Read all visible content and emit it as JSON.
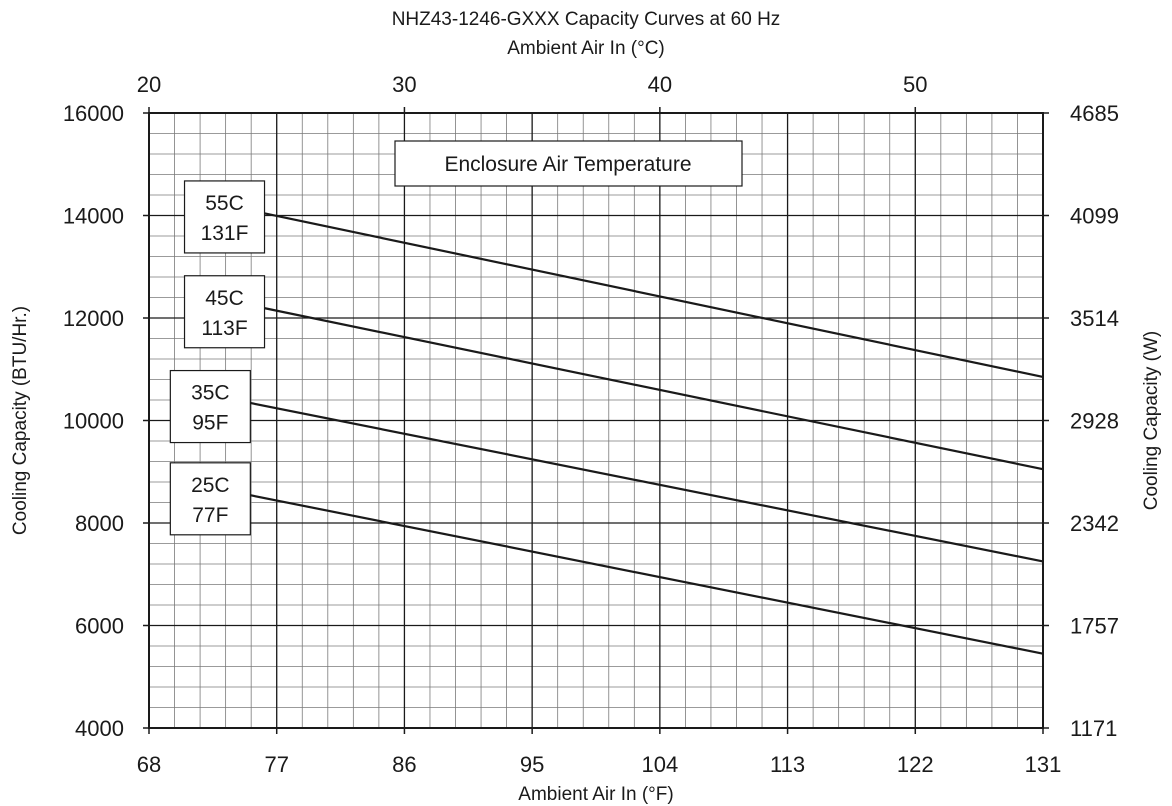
{
  "chart_data": {
    "type": "line",
    "title": "NHZ43-1246-GXXX Capacity Curves at 60 Hz",
    "top_axis_label": "Ambient Air In (°C)",
    "top_ticks": [
      "20",
      "30",
      "40",
      "50"
    ],
    "top_tick_values_c": [
      20,
      30,
      40,
      50
    ],
    "xlabel": "Ambient Air In (°F)",
    "x_ticks": [
      "68",
      "77",
      "86",
      "95",
      "104",
      "113",
      "122",
      "131"
    ],
    "xlim": [
      68,
      131
    ],
    "ylabel": "Cooling Capacity (BTU/Hr.)",
    "y_ticks": [
      "4000",
      "6000",
      "8000",
      "10000",
      "12000",
      "14000",
      "16000"
    ],
    "ylim": [
      4000,
      16000
    ],
    "y2label": "Cooling Capacity (W)",
    "y2_ticks": [
      "1171",
      "1757",
      "2342",
      "2928",
      "3514",
      "4099",
      "4685"
    ],
    "legend_title": "Enclosure Air Temperature",
    "grid": true,
    "series": [
      {
        "name": "55C 131F",
        "label_lines": [
          "55C",
          "131F"
        ],
        "x": [
          76,
          131
        ],
        "y": [
          14050,
          10850
        ]
      },
      {
        "name": "45C 113F",
        "label_lines": [
          "45C",
          "113F"
        ],
        "x": [
          76,
          131
        ],
        "y": [
          12200,
          9050
        ]
      },
      {
        "name": "35C 95F",
        "label_lines": [
          "35C",
          "95F"
        ],
        "x": [
          75,
          131
        ],
        "y": [
          10350,
          7250
        ]
      },
      {
        "name": "25C 77F",
        "label_lines": [
          "25C",
          "77F"
        ],
        "x": [
          75,
          131
        ],
        "y": [
          8550,
          5450
        ]
      }
    ]
  }
}
